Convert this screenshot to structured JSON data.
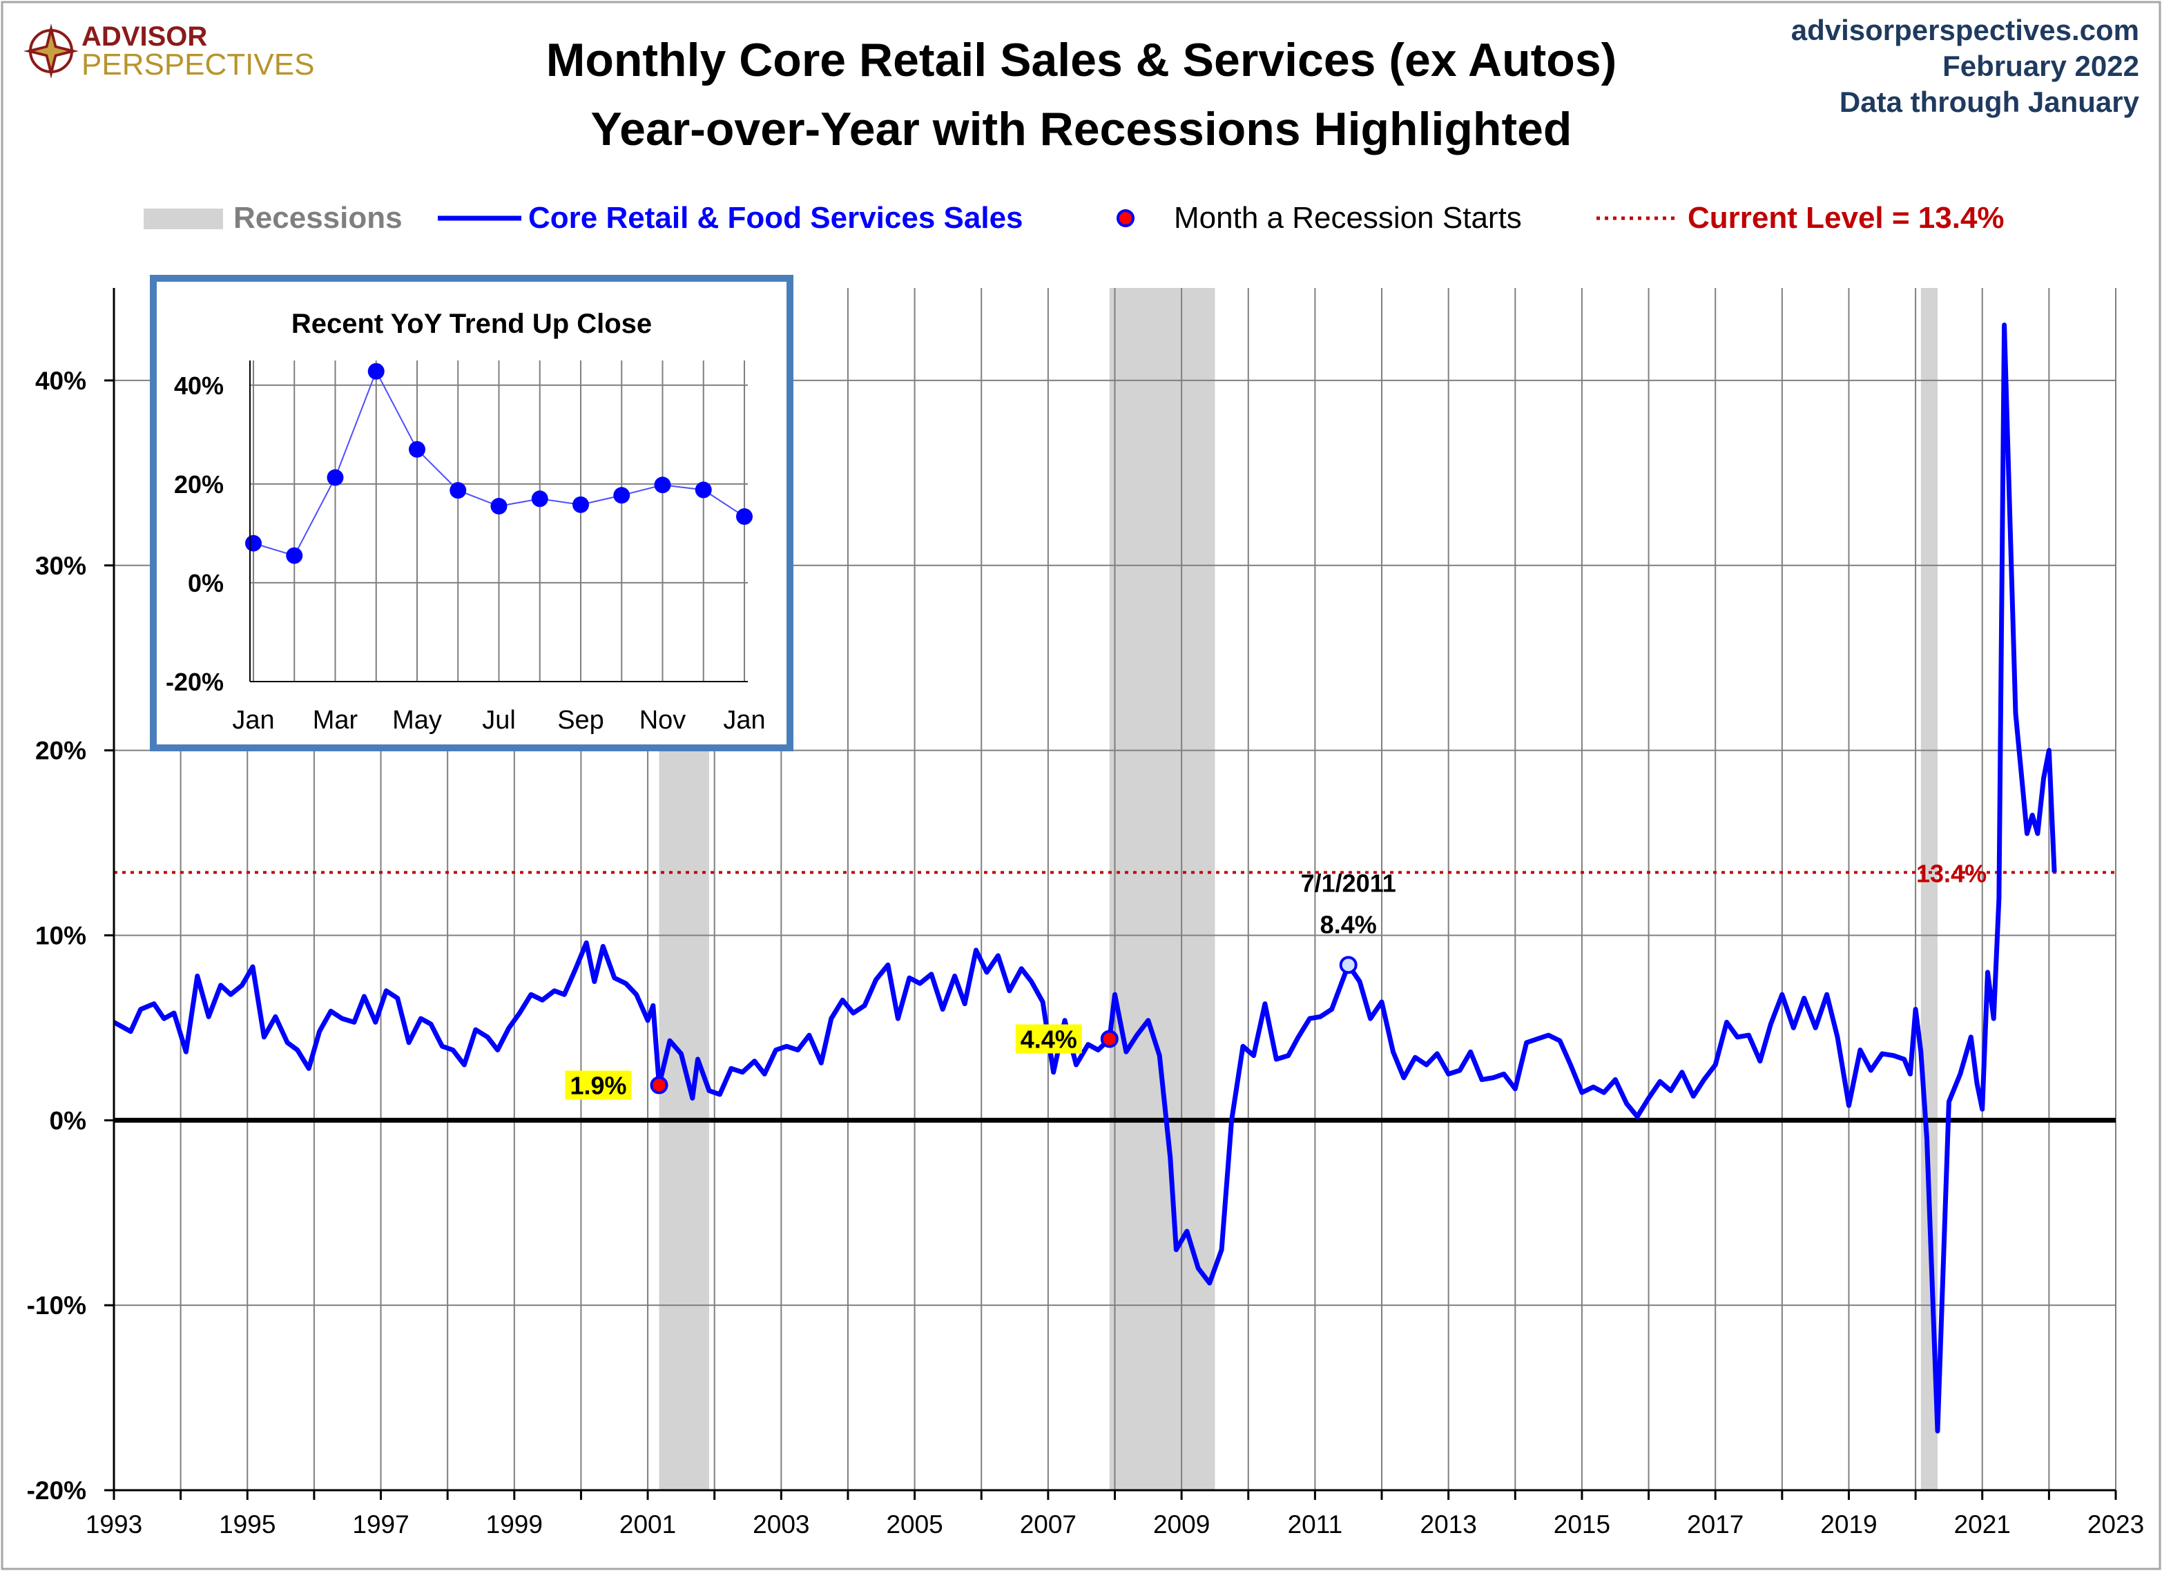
{
  "logo": {
    "line1": "ADVISOR",
    "line2": "PERSPECTIVES"
  },
  "header": {
    "title_line1": "Monthly Core Retail Sales & Services (ex Autos)",
    "title_line2": "Year-over-Year with Recessions Highlighted",
    "site": "advisorperspectives.com",
    "date": "February 2022",
    "data_through": "Data through January"
  },
  "legend": {
    "recessions": "Recessions",
    "series": "Core Retail & Food Services Sales",
    "recession_start": "Month a Recession Starts",
    "current_level": "Current Level = 13.4%"
  },
  "colors": {
    "series": "#0000ff",
    "recession": "#d3d3d3",
    "current_level": "#c00000",
    "highlight": "#ffff00",
    "marker": "#ff0000",
    "inset_border": "#4a7ebb",
    "grid": "#7f7f7f"
  },
  "chart_data": {
    "type": "line",
    "x_ticks": [
      "1993",
      "1995",
      "1997",
      "1999",
      "2001",
      "2003",
      "2005",
      "2007",
      "2009",
      "2011",
      "2013",
      "2015",
      "2017",
      "2019",
      "2021",
      "2023"
    ],
    "y_ticks": [
      "-20%",
      "-10%",
      "0%",
      "10%",
      "20%",
      "30%",
      "40%"
    ],
    "xlim": [
      1993,
      2023
    ],
    "ylim": [
      -20,
      45
    ],
    "grid": true,
    "legend_position": "top",
    "current_level": 13.4,
    "current_level_label": "13.4%",
    "recessions": [
      {
        "start": 2001.17,
        "end": 2001.92
      },
      {
        "start": 2007.92,
        "end": 2009.5
      },
      {
        "start": 2020.08,
        "end": 2020.33
      }
    ],
    "recession_start_points": [
      {
        "x": 2001.17,
        "y": 1.9,
        "label": "1.9%"
      },
      {
        "x": 2007.92,
        "y": 4.4,
        "label": "4.4%"
      }
    ],
    "peak_annotation": {
      "x": 2011.5,
      "y": 8.4,
      "date_label": "7/1/2011",
      "value_label": "8.4%"
    },
    "series": [
      {
        "name": "Core Retail & Food Services Sales",
        "points": [
          [
            1993.0,
            5.3
          ],
          [
            1993.25,
            4.8
          ],
          [
            1993.4,
            6.0
          ],
          [
            1993.6,
            6.3
          ],
          [
            1993.75,
            5.5
          ],
          [
            1993.9,
            5.8
          ],
          [
            1994.08,
            3.7
          ],
          [
            1994.25,
            7.8
          ],
          [
            1994.42,
            5.6
          ],
          [
            1994.6,
            7.3
          ],
          [
            1994.75,
            6.8
          ],
          [
            1994.92,
            7.3
          ],
          [
            1995.08,
            8.3
          ],
          [
            1995.25,
            4.5
          ],
          [
            1995.42,
            5.6
          ],
          [
            1995.6,
            4.2
          ],
          [
            1995.75,
            3.8
          ],
          [
            1995.92,
            2.8
          ],
          [
            1996.08,
            4.8
          ],
          [
            1996.25,
            5.9
          ],
          [
            1996.42,
            5.5
          ],
          [
            1996.6,
            5.3
          ],
          [
            1996.75,
            6.7
          ],
          [
            1996.92,
            5.3
          ],
          [
            1997.08,
            7.0
          ],
          [
            1997.25,
            6.6
          ],
          [
            1997.42,
            4.2
          ],
          [
            1997.6,
            5.5
          ],
          [
            1997.75,
            5.2
          ],
          [
            1997.92,
            4.0
          ],
          [
            1998.08,
            3.8
          ],
          [
            1998.25,
            3.0
          ],
          [
            1998.42,
            4.9
          ],
          [
            1998.6,
            4.5
          ],
          [
            1998.75,
            3.8
          ],
          [
            1998.92,
            5.0
          ],
          [
            1999.08,
            5.8
          ],
          [
            1999.25,
            6.8
          ],
          [
            1999.42,
            6.5
          ],
          [
            1999.6,
            7.0
          ],
          [
            1999.75,
            6.8
          ],
          [
            1999.92,
            8.2
          ],
          [
            2000.08,
            9.6
          ],
          [
            2000.2,
            7.5
          ],
          [
            2000.33,
            9.4
          ],
          [
            2000.5,
            7.7
          ],
          [
            2000.67,
            7.4
          ],
          [
            2000.83,
            6.8
          ],
          [
            2001.0,
            5.4
          ],
          [
            2001.08,
            6.2
          ],
          [
            2001.17,
            1.9
          ],
          [
            2001.33,
            4.3
          ],
          [
            2001.5,
            3.6
          ],
          [
            2001.67,
            1.2
          ],
          [
            2001.75,
            3.3
          ],
          [
            2001.92,
            1.6
          ],
          [
            2002.08,
            1.4
          ],
          [
            2002.25,
            2.8
          ],
          [
            2002.42,
            2.6
          ],
          [
            2002.6,
            3.2
          ],
          [
            2002.75,
            2.5
          ],
          [
            2002.92,
            3.8
          ],
          [
            2003.08,
            4.0
          ],
          [
            2003.25,
            3.8
          ],
          [
            2003.42,
            4.6
          ],
          [
            2003.6,
            3.1
          ],
          [
            2003.75,
            5.5
          ],
          [
            2003.92,
            6.5
          ],
          [
            2004.08,
            5.8
          ],
          [
            2004.25,
            6.2
          ],
          [
            2004.42,
            7.6
          ],
          [
            2004.6,
            8.4
          ],
          [
            2004.75,
            5.5
          ],
          [
            2004.92,
            7.7
          ],
          [
            2005.08,
            7.4
          ],
          [
            2005.25,
            7.9
          ],
          [
            2005.42,
            6.0
          ],
          [
            2005.6,
            7.8
          ],
          [
            2005.75,
            6.3
          ],
          [
            2005.92,
            9.2
          ],
          [
            2006.08,
            8.0
          ],
          [
            2006.25,
            8.9
          ],
          [
            2006.42,
            7.0
          ],
          [
            2006.6,
            8.2
          ],
          [
            2006.75,
            7.5
          ],
          [
            2006.92,
            6.4
          ],
          [
            2007.08,
            2.6
          ],
          [
            2007.25,
            5.4
          ],
          [
            2007.42,
            3.0
          ],
          [
            2007.6,
            4.1
          ],
          [
            2007.75,
            3.8
          ],
          [
            2007.92,
            4.4
          ],
          [
            2008.0,
            6.8
          ],
          [
            2008.17,
            3.7
          ],
          [
            2008.33,
            4.6
          ],
          [
            2008.5,
            5.4
          ],
          [
            2008.67,
            3.5
          ],
          [
            2008.83,
            -2.0
          ],
          [
            2008.92,
            -7.0
          ],
          [
            2009.08,
            -6.0
          ],
          [
            2009.25,
            -8.0
          ],
          [
            2009.42,
            -8.8
          ],
          [
            2009.6,
            -7.0
          ],
          [
            2009.75,
            0.0
          ],
          [
            2009.92,
            4.0
          ],
          [
            2010.08,
            3.5
          ],
          [
            2010.25,
            6.3
          ],
          [
            2010.42,
            3.3
          ],
          [
            2010.6,
            3.5
          ],
          [
            2010.75,
            4.5
          ],
          [
            2010.92,
            5.5
          ],
          [
            2011.08,
            5.6
          ],
          [
            2011.25,
            6.0
          ],
          [
            2011.5,
            8.4
          ],
          [
            2011.67,
            7.5
          ],
          [
            2011.83,
            5.5
          ],
          [
            2012.0,
            6.4
          ],
          [
            2012.17,
            3.7
          ],
          [
            2012.33,
            2.3
          ],
          [
            2012.5,
            3.4
          ],
          [
            2012.67,
            3.0
          ],
          [
            2012.83,
            3.6
          ],
          [
            2013.0,
            2.5
          ],
          [
            2013.17,
            2.7
          ],
          [
            2013.33,
            3.7
          ],
          [
            2013.5,
            2.2
          ],
          [
            2013.67,
            2.3
          ],
          [
            2013.83,
            2.5
          ],
          [
            2014.0,
            1.7
          ],
          [
            2014.17,
            4.2
          ],
          [
            2014.33,
            4.4
          ],
          [
            2014.5,
            4.6
          ],
          [
            2014.67,
            4.3
          ],
          [
            2014.83,
            3.0
          ],
          [
            2015.0,
            1.5
          ],
          [
            2015.17,
            1.8
          ],
          [
            2015.33,
            1.5
          ],
          [
            2015.5,
            2.2
          ],
          [
            2015.67,
            0.9
          ],
          [
            2015.83,
            0.2
          ],
          [
            2016.0,
            1.2
          ],
          [
            2016.17,
            2.1
          ],
          [
            2016.33,
            1.6
          ],
          [
            2016.5,
            2.6
          ],
          [
            2016.67,
            1.3
          ],
          [
            2016.83,
            2.2
          ],
          [
            2017.0,
            3.0
          ],
          [
            2017.17,
            5.3
          ],
          [
            2017.33,
            4.5
          ],
          [
            2017.5,
            4.6
          ],
          [
            2017.67,
            3.2
          ],
          [
            2017.83,
            5.2
          ],
          [
            2018.0,
            6.8
          ],
          [
            2018.17,
            5.0
          ],
          [
            2018.33,
            6.6
          ],
          [
            2018.5,
            5.0
          ],
          [
            2018.67,
            6.8
          ],
          [
            2018.83,
            4.5
          ],
          [
            2019.0,
            0.8
          ],
          [
            2019.17,
            3.8
          ],
          [
            2019.33,
            2.7
          ],
          [
            2019.5,
            3.6
          ],
          [
            2019.67,
            3.5
          ],
          [
            2019.83,
            3.3
          ],
          [
            2019.92,
            2.5
          ],
          [
            2020.0,
            6.0
          ],
          [
            2020.08,
            3.7
          ],
          [
            2020.17,
            -1.0
          ],
          [
            2020.33,
            -16.8
          ],
          [
            2020.5,
            1.0
          ],
          [
            2020.67,
            2.5
          ],
          [
            2020.83,
            4.5
          ],
          [
            2020.92,
            2.0
          ],
          [
            2021.0,
            0.6
          ],
          [
            2021.08,
            8.0
          ],
          [
            2021.17,
            5.5
          ],
          [
            2021.25,
            12.0
          ],
          [
            2021.33,
            43.0
          ],
          [
            2021.5,
            22.0
          ],
          [
            2021.67,
            15.5
          ],
          [
            2021.75,
            16.5
          ],
          [
            2021.83,
            15.5
          ],
          [
            2021.92,
            18.5
          ],
          [
            2022.0,
            20.0
          ],
          [
            2022.08,
            13.4
          ]
        ]
      }
    ]
  },
  "inset": {
    "title": "Recent  YoY Trend Up Close",
    "x_tick_labels": [
      "Jan",
      "Mar",
      "May",
      "Jul",
      "Sep",
      "Nov",
      "Jan"
    ],
    "y_tick_labels": [
      "40%",
      "20%",
      "0%",
      "-20%"
    ],
    "ylim": [
      -20,
      45
    ],
    "values": [
      8.0,
      5.5,
      21.3,
      42.8,
      27.0,
      18.7,
      15.5,
      17.0,
      15.8,
      17.7,
      19.8,
      18.8,
      13.4
    ]
  }
}
